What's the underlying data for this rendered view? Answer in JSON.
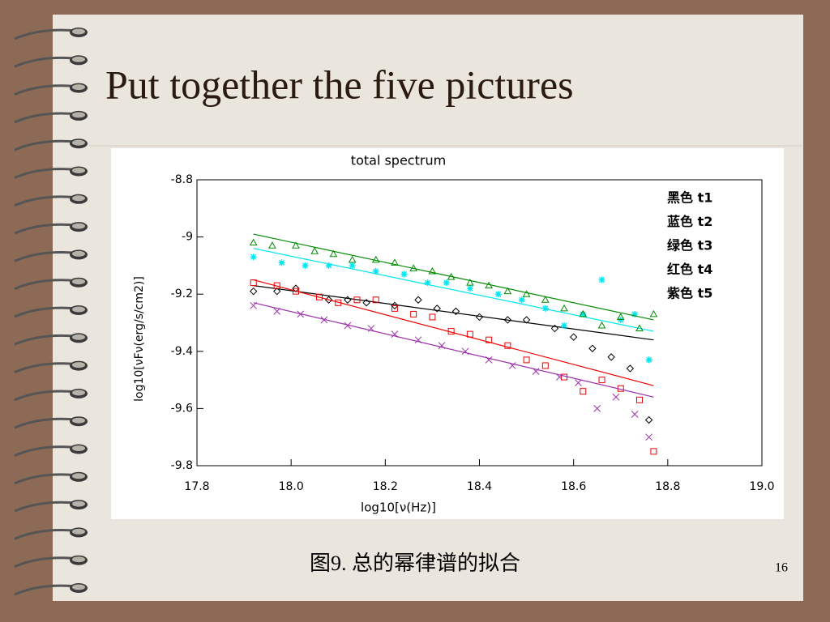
{
  "slide": {
    "title": "Put together the five pictures",
    "caption": "图9. 总的幂律谱的拟合",
    "page_number": "16"
  },
  "chart_data": {
    "type": "scatter",
    "title": "total spectrum",
    "x_label": "log10[ν(Hz)]",
    "y_label": "log10[νFν(erg/s/cm2)]",
    "xlim": [
      17.8,
      19.0
    ],
    "ylim": [
      -9.8,
      -8.8
    ],
    "xticks": [
      17.8,
      {
        "value": 18,
        "label": "18.0"
      },
      18.2,
      18.4,
      18.6,
      18.8,
      {
        "value": 19,
        "label": "19.0"
      }
    ],
    "yticks": [
      -8.8,
      -9,
      -9.2,
      -9.4,
      -9.6,
      -9.8
    ],
    "series": [
      {
        "name": "黑色 t1",
        "color": "#000000",
        "marker": "diamond",
        "x": [
          17.92,
          17.97,
          18.01,
          18.08,
          18.12,
          18.16,
          18.22,
          18.27,
          18.31,
          18.35,
          18.4,
          18.46,
          18.5,
          18.56,
          18.6,
          18.64,
          18.68,
          18.72,
          18.76
        ],
        "values": [
          -9.19,
          -9.19,
          -9.18,
          -9.22,
          -9.22,
          -9.23,
          -9.24,
          -9.22,
          -9.25,
          -9.26,
          -9.28,
          -9.29,
          -9.29,
          -9.32,
          -9.35,
          -9.39,
          -9.42,
          -9.46,
          -9.64
        ],
        "fit": {
          "x": [
            17.92,
            18.77
          ],
          "values": [
            -9.17,
            -9.36
          ]
        }
      },
      {
        "name": "蓝色 t2",
        "color": "#00e5ee",
        "marker": "asterisk",
        "x": [
          17.92,
          17.98,
          18.03,
          18.08,
          18.13,
          18.18,
          18.24,
          18.29,
          18.33,
          18.38,
          18.44,
          18.49,
          18.54,
          18.58,
          18.62,
          18.66,
          18.7,
          18.73,
          18.76
        ],
        "values": [
          -9.07,
          -9.09,
          -9.1,
          -9.1,
          -9.1,
          -9.12,
          -9.13,
          -9.16,
          -9.16,
          -9.18,
          -9.2,
          -9.22,
          -9.25,
          -9.31,
          -9.27,
          -9.15,
          -9.29,
          -9.27,
          -9.43
        ],
        "fit": {
          "x": [
            17.92,
            18.77
          ],
          "values": [
            -9.04,
            -9.33
          ]
        }
      },
      {
        "name": "绿色 t3",
        "color": "#008b00",
        "marker": "triangle",
        "x": [
          17.92,
          17.96,
          18.01,
          18.05,
          18.09,
          18.13,
          18.18,
          18.22,
          18.26,
          18.3,
          18.34,
          18.38,
          18.42,
          18.46,
          18.5,
          18.54,
          18.58,
          18.62,
          18.66,
          18.7,
          18.74,
          18.77
        ],
        "values": [
          -9.02,
          -9.03,
          -9.03,
          -9.05,
          -9.06,
          -9.08,
          -9.08,
          -9.09,
          -9.11,
          -9.12,
          -9.14,
          -9.16,
          -9.17,
          -9.19,
          -9.2,
          -9.22,
          -9.25,
          -9.27,
          -9.31,
          -9.28,
          -9.32,
          -9.27
        ],
        "fit": {
          "x": [
            17.92,
            18.77
          ],
          "values": [
            -8.99,
            -9.29
          ]
        }
      },
      {
        "name": "红色 t4",
        "color": "#ee0000",
        "marker": "square",
        "x": [
          17.92,
          17.97,
          18.01,
          18.06,
          18.1,
          18.14,
          18.18,
          18.22,
          18.26,
          18.3,
          18.34,
          18.38,
          18.42,
          18.46,
          18.5,
          18.54,
          18.58,
          18.62,
          18.66,
          18.7,
          18.74,
          18.77
        ],
        "values": [
          -9.16,
          -9.17,
          -9.19,
          -9.21,
          -9.23,
          -9.22,
          -9.22,
          -9.25,
          -9.27,
          -9.28,
          -9.33,
          -9.34,
          -9.36,
          -9.38,
          -9.43,
          -9.45,
          -9.49,
          -9.54,
          -9.5,
          -9.53,
          -9.57,
          -9.75
        ],
        "fit": {
          "x": [
            17.92,
            18.77
          ],
          "values": [
            -9.15,
            -9.52
          ]
        }
      },
      {
        "name": "紫色 t5",
        "color": "#9b30a8",
        "marker": "cross",
        "x": [
          17.92,
          17.97,
          18.02,
          18.07,
          18.12,
          18.17,
          18.22,
          18.27,
          18.32,
          18.37,
          18.42,
          18.47,
          18.52,
          18.57,
          18.61,
          18.65,
          18.69,
          18.73,
          18.76
        ],
        "values": [
          -9.24,
          -9.26,
          -9.27,
          -9.29,
          -9.31,
          -9.32,
          -9.34,
          -9.36,
          -9.38,
          -9.4,
          -9.43,
          -9.45,
          -9.47,
          -9.49,
          -9.51,
          -9.6,
          -9.56,
          -9.62,
          -9.7
        ],
        "fit": {
          "x": [
            17.92,
            18.77
          ],
          "values": [
            -9.23,
            -9.56
          ]
        }
      }
    ]
  }
}
